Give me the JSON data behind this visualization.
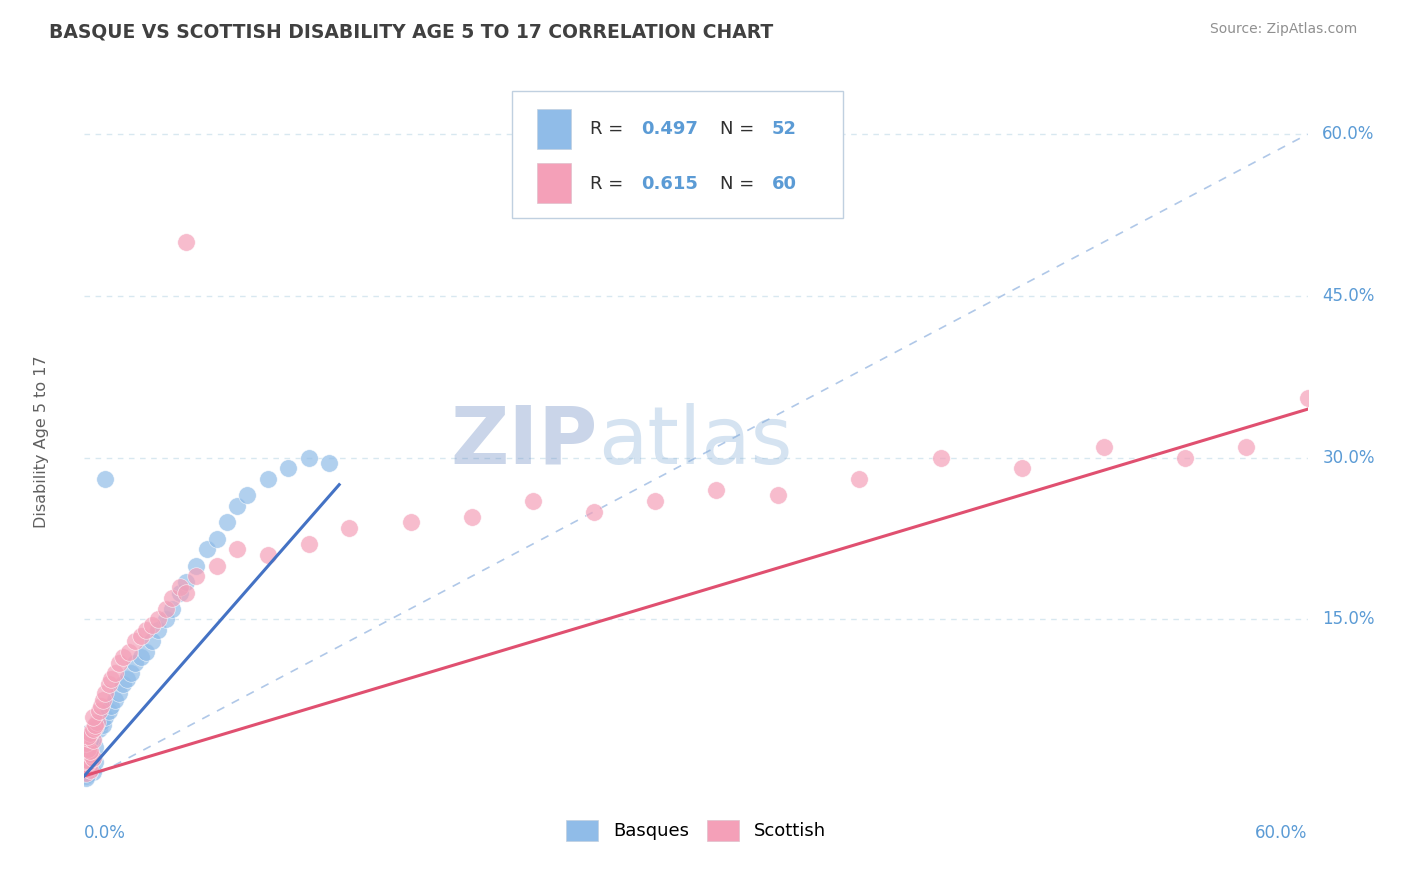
{
  "title": "BASQUE VS SCOTTISH DISABILITY AGE 5 TO 17 CORRELATION CHART",
  "source": "Source: ZipAtlas.com",
  "ylabel": "Disability Age 5 to 17",
  "xmin": 0.0,
  "xmax": 0.6,
  "ymin": -0.02,
  "ymax": 0.65,
  "ytick_vals": [
    0.15,
    0.3,
    0.45,
    0.6
  ],
  "ytick_labels": [
    "15.0%",
    "30.0%",
    "45.0%",
    "60.0%"
  ],
  "basques_color": "#90bce8",
  "scottish_color": "#f4a0b8",
  "basques_line_color": "#4472c4",
  "scottish_line_color": "#e05070",
  "diagonal_color": "#b0c8e8",
  "watermark_zip_color": "#7090c0",
  "watermark_atlas_color": "#90b8e0",
  "title_color": "#404040",
  "source_color": "#909090",
  "axis_label_color": "#5b9bd5",
  "background_color": "#ffffff",
  "grid_color": "#d8e8f0",
  "legend_box_color": "#e8f0f8",
  "basques_line_x": [
    0.0,
    0.125
  ],
  "basques_line_y": [
    0.005,
    0.275
  ],
  "scottish_line_x": [
    0.0,
    0.6
  ],
  "scottish_line_y": [
    0.005,
    0.345
  ],
  "basques_x": [
    0.001,
    0.002,
    0.003,
    0.002,
    0.001,
    0.004,
    0.003,
    0.005,
    0.002,
    0.001,
    0.003,
    0.004,
    0.001,
    0.002,
    0.003,
    0.005,
    0.004,
    0.003,
    0.002,
    0.001,
    0.006,
    0.007,
    0.008,
    0.009,
    0.01,
    0.012,
    0.013,
    0.015,
    0.017,
    0.019,
    0.021,
    0.023,
    0.025,
    0.028,
    0.03,
    0.033,
    0.036,
    0.04,
    0.043,
    0.047,
    0.05,
    0.055,
    0.06,
    0.065,
    0.07,
    0.075,
    0.08,
    0.09,
    0.1,
    0.11,
    0.12,
    0.01
  ],
  "basques_y": [
    0.01,
    0.008,
    0.012,
    0.015,
    0.005,
    0.009,
    0.02,
    0.018,
    0.007,
    0.003,
    0.025,
    0.022,
    0.03,
    0.028,
    0.035,
    0.032,
    0.04,
    0.038,
    0.045,
    0.042,
    0.05,
    0.048,
    0.055,
    0.052,
    0.06,
    0.065,
    0.07,
    0.075,
    0.082,
    0.09,
    0.095,
    0.1,
    0.11,
    0.115,
    0.12,
    0.13,
    0.14,
    0.15,
    0.16,
    0.175,
    0.185,
    0.2,
    0.215,
    0.225,
    0.24,
    0.255,
    0.265,
    0.28,
    0.29,
    0.3,
    0.295,
    0.28
  ],
  "scottish_x": [
    0.001,
    0.002,
    0.001,
    0.003,
    0.002,
    0.001,
    0.003,
    0.004,
    0.002,
    0.001,
    0.003,
    0.002,
    0.004,
    0.003,
    0.002,
    0.005,
    0.004,
    0.006,
    0.005,
    0.004,
    0.007,
    0.008,
    0.009,
    0.01,
    0.012,
    0.013,
    0.015,
    0.017,
    0.019,
    0.022,
    0.025,
    0.028,
    0.03,
    0.033,
    0.036,
    0.04,
    0.043,
    0.047,
    0.05,
    0.055,
    0.065,
    0.075,
    0.09,
    0.11,
    0.13,
    0.16,
    0.19,
    0.22,
    0.25,
    0.28,
    0.31,
    0.34,
    0.38,
    0.42,
    0.46,
    0.5,
    0.54,
    0.57,
    0.6,
    0.05
  ],
  "scottish_y": [
    0.008,
    0.012,
    0.015,
    0.01,
    0.018,
    0.02,
    0.025,
    0.022,
    0.03,
    0.035,
    0.028,
    0.04,
    0.038,
    0.045,
    0.042,
    0.05,
    0.048,
    0.055,
    0.052,
    0.06,
    0.065,
    0.07,
    0.075,
    0.082,
    0.09,
    0.095,
    0.1,
    0.11,
    0.115,
    0.12,
    0.13,
    0.135,
    0.14,
    0.145,
    0.15,
    0.16,
    0.17,
    0.18,
    0.175,
    0.19,
    0.2,
    0.215,
    0.21,
    0.22,
    0.235,
    0.24,
    0.245,
    0.26,
    0.25,
    0.26,
    0.27,
    0.265,
    0.28,
    0.3,
    0.29,
    0.31,
    0.3,
    0.31,
    0.355,
    0.5
  ]
}
